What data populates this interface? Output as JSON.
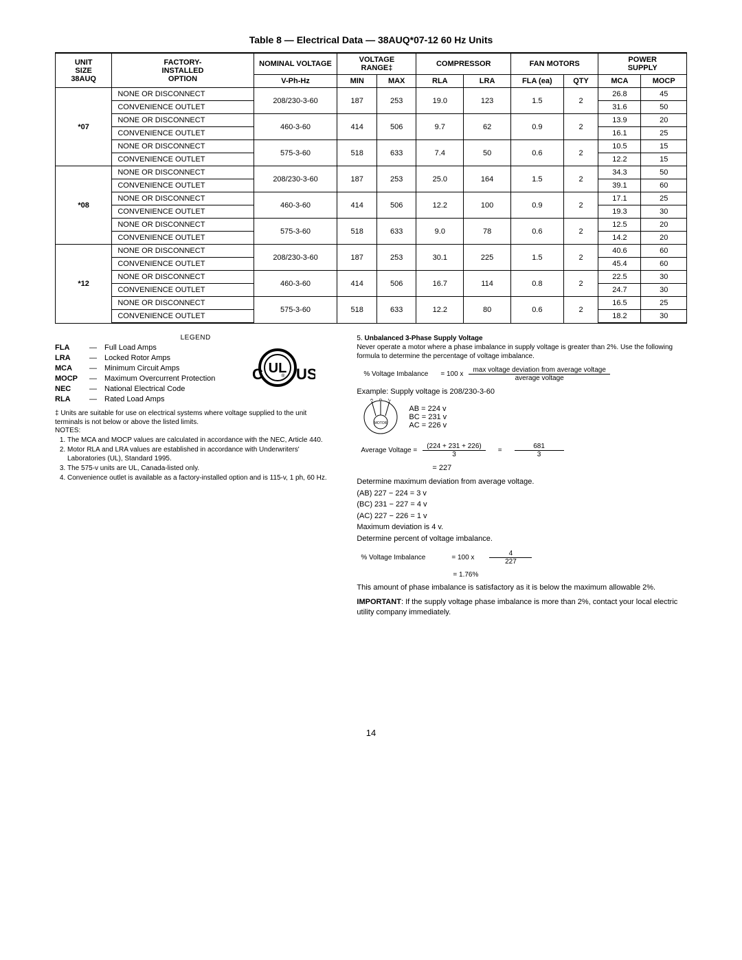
{
  "title": "Table 8 — Electrical Data — 38AUQ*07-12   60 Hz Units",
  "headers": {
    "unit_size": "UNIT SIZE 38AUQ",
    "factory": "FACTORY-\nINSTALLED\nOPTION",
    "nominal": "NOMINAL VOLTAGE",
    "nominal_sub": "V-Ph-Hz",
    "range": "VOLTAGE RANGE‡",
    "min": "MIN",
    "max": "MAX",
    "compressor": "COMPRESSOR",
    "rla": "RLA",
    "lra": "LRA",
    "fan": "FAN MOTORS",
    "fla_ea": "FLA (ea)",
    "qty": "QTY",
    "power": "POWER SUPPLY",
    "mca": "MCA",
    "mocp": "MOCP"
  },
  "units": [
    {
      "size": "*07",
      "rows": [
        {
          "opt": "NONE OR DISCONNECT",
          "v": "208/230-3-60",
          "min": "187",
          "max": "253",
          "rla": "19.0",
          "lra": "123",
          "fla": "1.5",
          "qty": "2",
          "mca": "26.8",
          "mocp": "45"
        },
        {
          "opt": "CONVENIENCE OUTLET",
          "mca": "31.6",
          "mocp": "50"
        },
        {
          "opt": "NONE OR DISCONNECT",
          "v": "460-3-60",
          "min": "414",
          "max": "506",
          "rla": "9.7",
          "lra": "62",
          "fla": "0.9",
          "qty": "2",
          "mca": "13.9",
          "mocp": "20"
        },
        {
          "opt": "CONVENIENCE OUTLET",
          "mca": "16.1",
          "mocp": "25"
        },
        {
          "opt": "NONE OR DISCONNECT",
          "v": "575-3-60",
          "min": "518",
          "max": "633",
          "rla": "7.4",
          "lra": "50",
          "fla": "0.6",
          "qty": "2",
          "mca": "10.5",
          "mocp": "15"
        },
        {
          "opt": "CONVENIENCE OUTLET",
          "mca": "12.2",
          "mocp": "15"
        }
      ]
    },
    {
      "size": "*08",
      "rows": [
        {
          "opt": "NONE OR DISCONNECT",
          "v": "208/230-3-60",
          "min": "187",
          "max": "253",
          "rla": "25.0",
          "lra": "164",
          "fla": "1.5",
          "qty": "2",
          "mca": "34.3",
          "mocp": "50"
        },
        {
          "opt": "CONVENIENCE OUTLET",
          "mca": "39.1",
          "mocp": "60"
        },
        {
          "opt": "NONE OR DISCONNECT",
          "v": "460-3-60",
          "min": "414",
          "max": "506",
          "rla": "12.2",
          "lra": "100",
          "fla": "0.9",
          "qty": "2",
          "mca": "17.1",
          "mocp": "25"
        },
        {
          "opt": "CONVENIENCE OUTLET",
          "mca": "19.3",
          "mocp": "30"
        },
        {
          "opt": "NONE OR DISCONNECT",
          "v": "575-3-60",
          "min": "518",
          "max": "633",
          "rla": "9.0",
          "lra": "78",
          "fla": "0.6",
          "qty": "2",
          "mca": "12.5",
          "mocp": "20"
        },
        {
          "opt": "CONVENIENCE OUTLET",
          "mca": "14.2",
          "mocp": "20"
        }
      ]
    },
    {
      "size": "*12",
      "rows": [
        {
          "opt": "NONE OR DISCONNECT",
          "v": "208/230-3-60",
          "min": "187",
          "max": "253",
          "rla": "30.1",
          "lra": "225",
          "fla": "1.5",
          "qty": "2",
          "mca": "40.6",
          "mocp": "60"
        },
        {
          "opt": "CONVENIENCE OUTLET",
          "mca": "45.4",
          "mocp": "60"
        },
        {
          "opt": "NONE OR DISCONNECT",
          "v": "460-3-60",
          "min": "414",
          "max": "506",
          "rla": "16.7",
          "lra": "114",
          "fla": "0.8",
          "qty": "2",
          "mca": "22.5",
          "mocp": "30"
        },
        {
          "opt": "CONVENIENCE OUTLET",
          "mca": "24.7",
          "mocp": "30"
        },
        {
          "opt": "NONE OR DISCONNECT",
          "v": "575-3-60",
          "min": "518",
          "max": "633",
          "rla": "12.2",
          "lra": "80",
          "fla": "0.6",
          "qty": "2",
          "mca": "16.5",
          "mocp": "25"
        },
        {
          "opt": "CONVENIENCE OUTLET",
          "mca": "18.2",
          "mocp": "30"
        }
      ]
    }
  ],
  "legend_title": "LEGEND",
  "legend": [
    {
      "abbr": "FLA",
      "def": "Full Load Amps"
    },
    {
      "abbr": "LRA",
      "def": "Locked Rotor Amps"
    },
    {
      "abbr": "MCA",
      "def": "Minimum Circuit Amps"
    },
    {
      "abbr": "MOCP",
      "def": "Maximum Overcurrent Protection"
    },
    {
      "abbr": "NEC",
      "def": "National Electrical Code"
    },
    {
      "abbr": "RLA",
      "def": "Rated Load Amps"
    }
  ],
  "footnote": "‡ Units are suitable for use on electrical systems where voltage supplied to the unit terminals is not below or above the listed limits.",
  "notes_label": "NOTES:",
  "notes": [
    "The MCA and MOCP values are calculated in accordance with the NEC, Article 440.",
    "Motor RLA and LRA values are established in accordance with Underwriters' Laboratories (UL), Standard 1995.",
    "The 575-v units are UL, Canada-listed only.",
    "Convenience outlet is available as a factory-installed option and is 115-v, 1 ph, 60 Hz."
  ],
  "note5": {
    "num": "5.",
    "title": "Unbalanced 3-Phase Supply Voltage",
    "body": "Never operate a motor where a phase imbalance in supply voltage is greater than 2%. Use the following formula to determine the percentage of voltage imbalance.",
    "formula_label": "% Voltage Imbalance",
    "formula_eq": "= 100 x",
    "formula_num": "max voltage deviation from average voltage",
    "formula_den": "average voltage",
    "example_label": "Example: Supply voltage is 208/230-3-60",
    "phases_labels": "A   B   C",
    "ab": "AB = 224 v",
    "bc": "BC = 231 v",
    "ac": "AC = 226 v",
    "avg_label": "Average Voltage  =",
    "avg_num": "(224 + 231 + 226)",
    "avg_den1": "3",
    "avg_eq": "=",
    "avg_num2": "681",
    "avg_den2": "3",
    "avg_result": "=          227",
    "det_max": "Determine maximum deviation from average voltage.",
    "l1": "(AB) 227 − 224 = 3 v",
    "l2": "(BC) 231 − 227 = 4 v",
    "l3": "(AC) 227 − 226 = 1 v",
    "l4": "Maximum deviation is 4 v.",
    "det_pct": "Determine percent of voltage imbalance.",
    "pct_label": "% Voltage Imbalance",
    "pct_eq": "= 100  x",
    "pct_num": "4",
    "pct_den": "227",
    "pct_result": "= 1.76%",
    "conclusion": "This amount of phase imbalance is satisfactory as it is below the maximum allowable 2%.",
    "important_label": "IMPORTANT",
    "important": ":  If the supply voltage phase imbalance is more than 2%, contact your local electric utility company immediately."
  },
  "ul": {
    "c": "C",
    "ul": "UL",
    "us": "US",
    "r": "®"
  },
  "page": "14"
}
